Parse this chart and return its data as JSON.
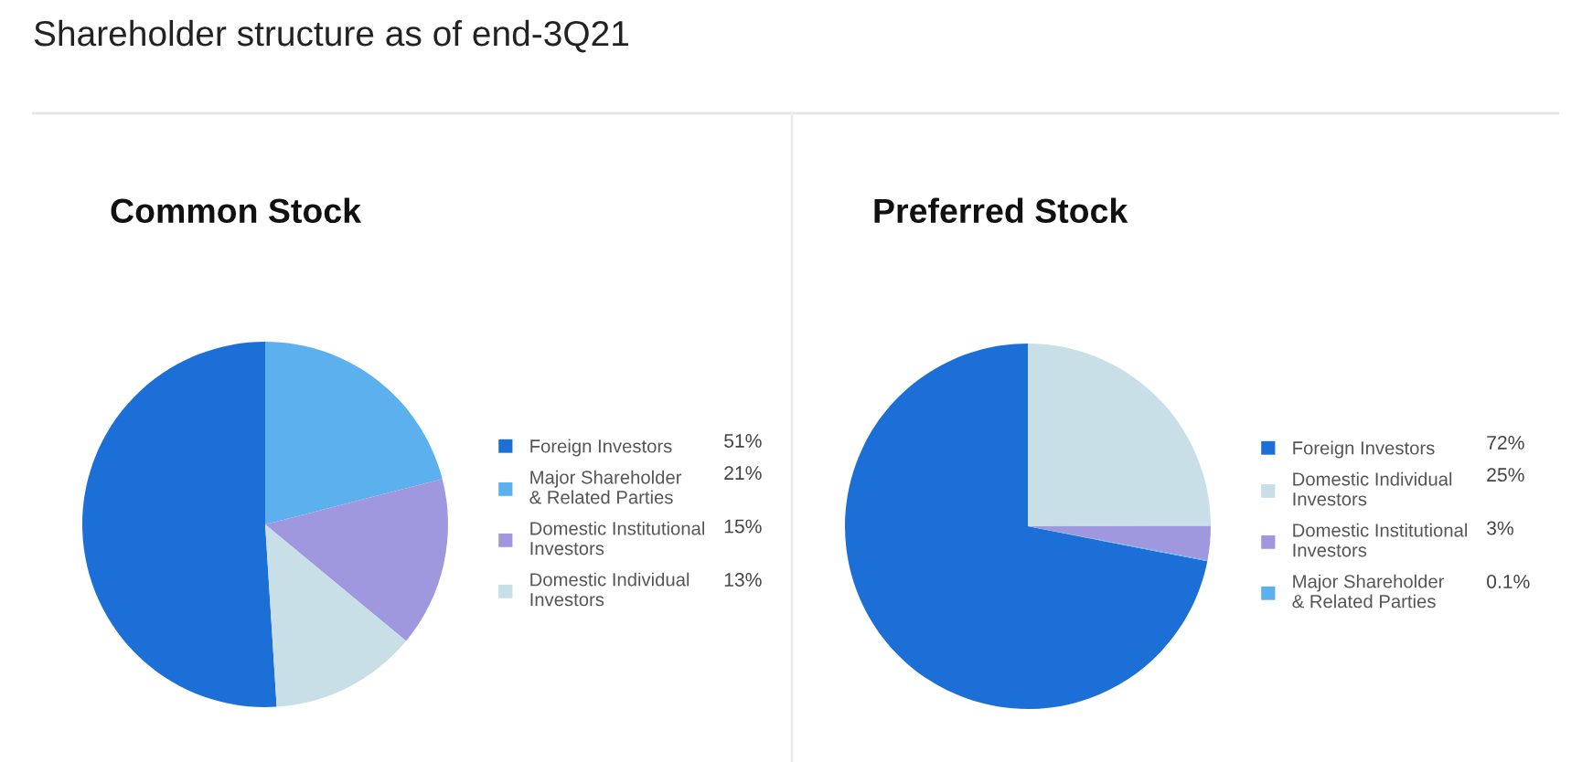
{
  "chart_data": [
    {
      "type": "pie",
      "title": "Common Stock",
      "annotations": [
        "Shareholder structure as of end-3Q21"
      ],
      "categories": [
        "Foreign Investors",
        "Major Shareholder\n& Related Parties",
        "Domestic Institutional\nInvestors",
        "Domestic Individual\nInvestors"
      ],
      "values": [
        51,
        21,
        15,
        13
      ],
      "value_labels": [
        "51%",
        "21%",
        "15%",
        "13%"
      ],
      "colors": [
        "#1b6fd6",
        "#5cb0ee",
        "#9f98de",
        "#c8dfe8"
      ],
      "legend": "right"
    },
    {
      "type": "pie",
      "title": "Preferred Stock",
      "categories": [
        "Foreign Investors",
        "Domestic Individual\nInvestors",
        "Domestic Institutional\nInvestors",
        "Major Shareholder\n& Related Parties"
      ],
      "values": [
        72,
        25,
        3,
        0.1
      ],
      "value_labels": [
        "72%",
        "25%",
        "3%",
        "0.1%"
      ],
      "colors": [
        "#1b6fd6",
        "#c8dfe8",
        "#9f98de",
        "#5cb0ee"
      ],
      "legend": "right"
    }
  ]
}
